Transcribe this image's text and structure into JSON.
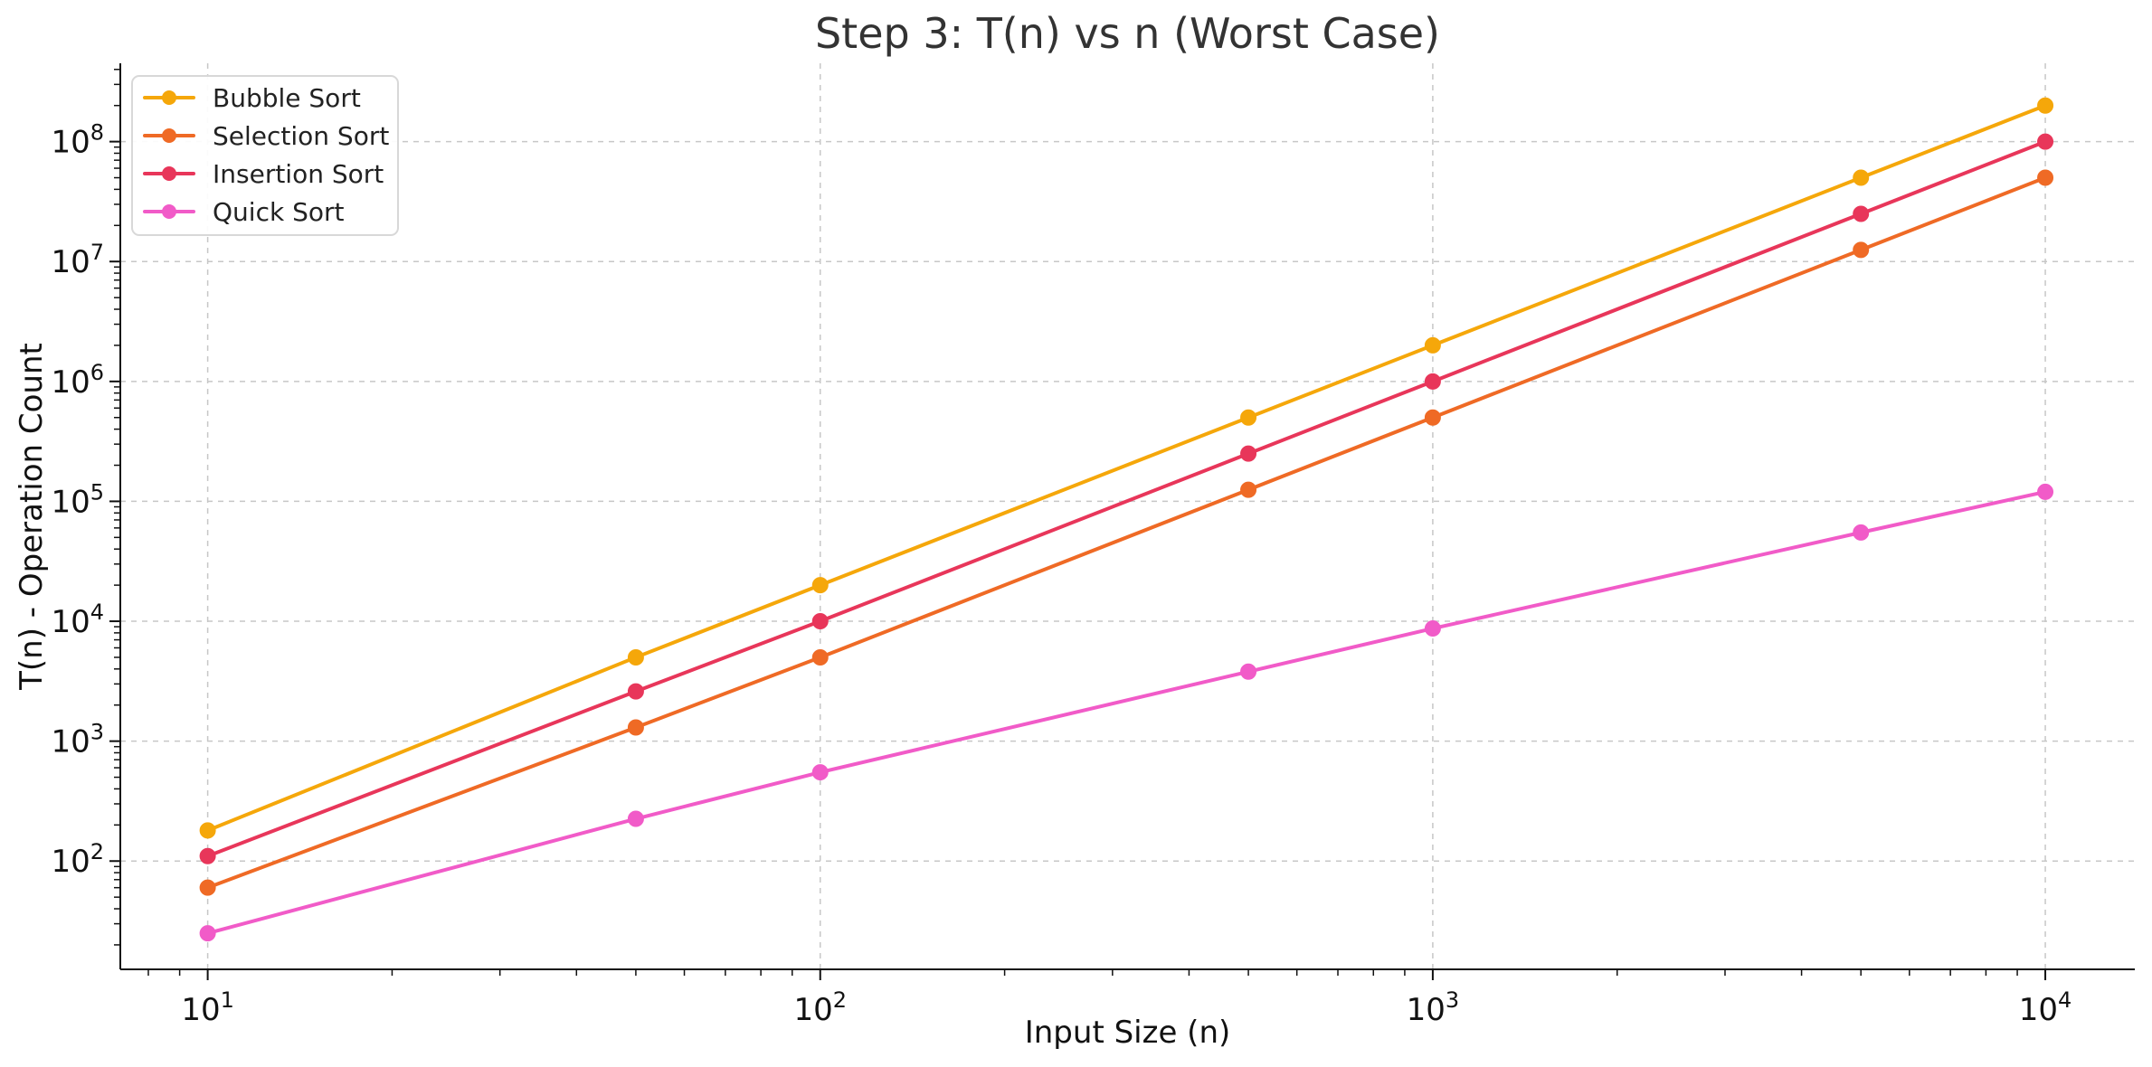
{
  "chart_data": {
    "type": "line",
    "title": "Step 3: T(n) vs n (Worst Case)",
    "xlabel": "Input Size (n)",
    "ylabel": "T(n) - Operation Count",
    "xscale": "log",
    "yscale": "log",
    "xlim": [
      7.2,
      14000
    ],
    "ylim": [
      12.5,
      450000000
    ],
    "grid": true,
    "legend_position": "top-left",
    "x_ticks": [
      {
        "value": 10,
        "base": "10",
        "exp": "1"
      },
      {
        "value": 100,
        "base": "10",
        "exp": "2"
      },
      {
        "value": 1000,
        "base": "10",
        "exp": "3"
      },
      {
        "value": 10000,
        "base": "10",
        "exp": "4"
      }
    ],
    "y_ticks": [
      {
        "value": 100,
        "base": "10",
        "exp": "2"
      },
      {
        "value": 1000,
        "base": "10",
        "exp": "3"
      },
      {
        "value": 10000,
        "base": "10",
        "exp": "4"
      },
      {
        "value": 100000,
        "base": "10",
        "exp": "5"
      },
      {
        "value": 1000000,
        "base": "10",
        "exp": "6"
      },
      {
        "value": 10000000,
        "base": "10",
        "exp": "7"
      },
      {
        "value": 100000000,
        "base": "10",
        "exp": "8"
      }
    ],
    "x": [
      10,
      50,
      100,
      500,
      1000,
      5000,
      10000
    ],
    "series": [
      {
        "name": "Bubble Sort",
        "color": "#f5a70a",
        "values": [
          180,
          5000,
          20000,
          500000,
          2000000,
          50000000,
          200000000
        ]
      },
      {
        "name": "Selection Sort",
        "color": "#ef6a25",
        "values": [
          60,
          1300,
          5000,
          125000,
          500000,
          12500000,
          50000000
        ]
      },
      {
        "name": "Insertion Sort",
        "color": "#e8365a",
        "values": [
          110,
          2600,
          10000,
          250000,
          1000000,
          25000000,
          100000000
        ]
      },
      {
        "name": "Quick Sort",
        "color": "#f15bc8",
        "values": [
          25,
          225,
          550,
          3800,
          8700,
          55000,
          120000
        ]
      }
    ]
  }
}
